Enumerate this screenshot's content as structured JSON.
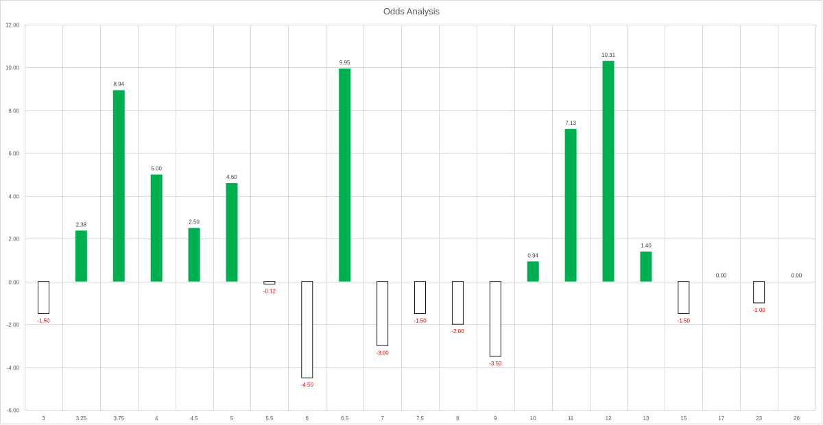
{
  "chart_data": {
    "type": "bar",
    "title": "Odds Analysis",
    "xlabel": "",
    "ylabel": "",
    "categories": [
      "3",
      "3.25",
      "3.75",
      "4",
      "4.5",
      "5",
      "5.5",
      "6",
      "6.5",
      "7",
      "7.5",
      "8",
      "9",
      "10",
      "11",
      "12",
      "13",
      "15",
      "17",
      "23",
      "26"
    ],
    "values": [
      -1.5,
      2.38,
      8.94,
      5.0,
      2.5,
      4.6,
      -0.12,
      -4.5,
      9.95,
      -3.0,
      -1.5,
      -2.0,
      -3.5,
      0.94,
      7.13,
      10.31,
      1.4,
      -1.5,
      0.0,
      -1.0,
      0.0
    ],
    "data_labels": [
      "-1.50",
      "2.38",
      "8.94",
      "5.00",
      "2.50",
      "4.60",
      "-0.12",
      "-4.50",
      "9.95",
      "-3.00",
      "-1.50",
      "-2.00",
      "-3.50",
      "0.94",
      "7.13",
      "10.31",
      "1.40",
      "-1.50",
      "0.00",
      "-1.00",
      "0.00"
    ],
    "ylim": [
      -6,
      12
    ],
    "yticks": [
      -6,
      -4,
      -2,
      0,
      2,
      4,
      6,
      8,
      10,
      12
    ],
    "ytick_labels": [
      "-6.00",
      "-4.00",
      "-2.00",
      "0.00",
      "2.00",
      "4.00",
      "6.00",
      "8.00",
      "10.00",
      "12.00"
    ],
    "grid": true,
    "legend": "none",
    "colors": {
      "positive_fill": "#00b050",
      "negative_fill": "#ffffff",
      "negative_stroke": "#1a1a1a",
      "positive_label": "#404040",
      "negative_label": "#ff0000",
      "grid": "#d9d9d9",
      "axis_text": "#595959"
    }
  }
}
